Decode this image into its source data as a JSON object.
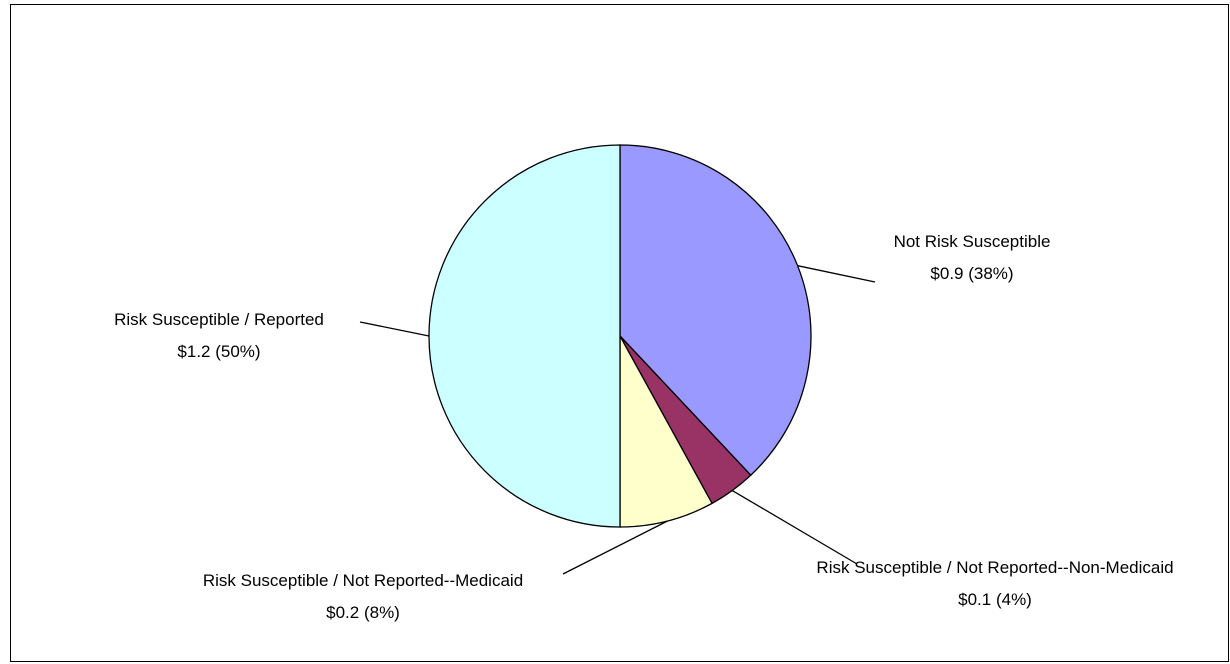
{
  "chart_data": {
    "type": "pie",
    "title": "",
    "start": "12 o'clock",
    "direction": "clockwise",
    "legend": "none",
    "slices": [
      {
        "label": "Not Risk Susceptible",
        "value_label": "$0.9 (38%)",
        "value": 0.9,
        "percent": 38,
        "color": "#9999ff"
      },
      {
        "label": "Risk Susceptible / Not Reported--Non-Medicaid",
        "value_label": "$0.1 (4%)",
        "value": 0.1,
        "percent": 4,
        "color": "#993366"
      },
      {
        "label": "Risk Susceptible / Not Reported--Medicaid",
        "value_label": "$0.2 (8%)",
        "value": 0.2,
        "percent": 8,
        "color": "#ffffcc"
      },
      {
        "label": "Risk Susceptible / Reported",
        "value_label": "$1.2 (50%)",
        "value": 1.2,
        "percent": 50,
        "color": "#ccffff"
      }
    ]
  }
}
